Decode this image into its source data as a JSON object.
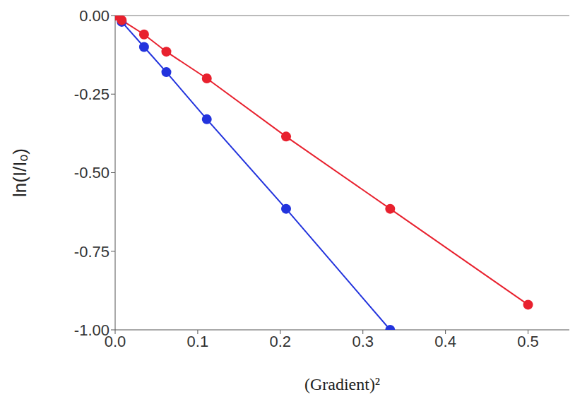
{
  "chart_data": {
    "type": "line",
    "x_label": "(Gradient)²",
    "y_label": "ln(I/Iₒ)",
    "xlim": [
      0,
      0.55
    ],
    "xticks": [
      {
        "value": 0,
        "label": "0.0"
      },
      {
        "value": 0.1,
        "label": "0.1"
      },
      {
        "value": 0.2,
        "label": "0.2"
      },
      {
        "value": 0.3,
        "label": "0.3"
      },
      {
        "value": 0.4,
        "label": "0.4"
      },
      {
        "value": 0.5,
        "label": "0.5"
      }
    ],
    "ylim": [
      -1,
      0
    ],
    "yticks": [
      {
        "value": -1,
        "label": "-1.00"
      },
      {
        "value": -0.75,
        "label": "-0.75"
      },
      {
        "value": -0.5,
        "label": "-0.50"
      },
      {
        "value": -0.25,
        "label": "-0.25"
      },
      {
        "value": 0,
        "label": "0.00"
      }
    ],
    "grid": false,
    "marker": "circle",
    "series": [
      {
        "color": "#2233dd",
        "x": [
          0,
          0.008,
          0.035,
          0.062,
          0.111,
          0.207,
          0.333
        ],
        "values": [
          0,
          -0.02,
          -0.1,
          -0.18,
          -0.33,
          -0.615,
          -1.0
        ]
      },
      {
        "color": "#e8212e",
        "x": [
          0,
          0.008,
          0.035,
          0.062,
          0.111,
          0.207,
          0.333,
          0.5
        ],
        "values": [
          0,
          -0.015,
          -0.06,
          -0.115,
          -0.2,
          -0.385,
          -0.615,
          -0.92
        ]
      }
    ]
  }
}
